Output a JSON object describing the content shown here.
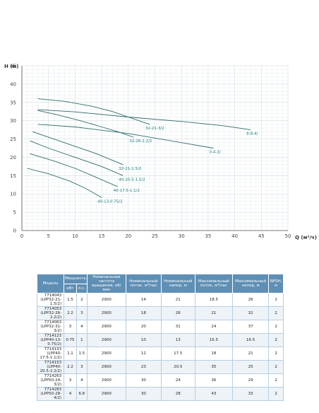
{
  "chart_data": {
    "type": "line",
    "xlabel": "Q (м³/ч)",
    "ylabel": "H (м)",
    "xlim": [
      0,
      50
    ],
    "ylim": [
      0,
      45
    ],
    "xticks": [
      "0",
      "5",
      "10",
      "15",
      "20",
      "25",
      "30",
      "35",
      "40",
      "45",
      "50"
    ],
    "yticks": [
      "0",
      "5",
      "10",
      "15",
      "20",
      "25",
      "30",
      "35",
      "40",
      "45"
    ],
    "grid": true,
    "series": [
      {
        "name": "32-21-3/2",
        "x": [
          3,
          8,
          13,
          17,
          20,
          22,
          24
        ],
        "y": [
          36,
          35.3,
          34,
          32.5,
          31,
          30,
          29
        ]
      },
      {
        "name": "8-8-4/",
        "x": [
          3,
          10,
          20,
          30,
          38,
          43
        ],
        "y": [
          33,
          32.4,
          31,
          29.8,
          28.6,
          27.5
        ]
      },
      {
        "name": "32-26-2.2/2",
        "x": [
          3,
          7,
          11,
          15,
          18,
          21
        ],
        "y": [
          32.8,
          31.5,
          30,
          28.3,
          27,
          25.5
        ]
      },
      {
        "name": "0-4-3/",
        "x": [
          3,
          10,
          20,
          30,
          36
        ],
        "y": [
          29,
          28.3,
          26.5,
          24,
          22.5
        ]
      },
      {
        "name": "32-21-1.5/2",
        "x": [
          2,
          6,
          10,
          14,
          19
        ],
        "y": [
          27,
          25,
          23,
          21,
          18
        ]
      },
      {
        "name": "40-20.5-1.5/2",
        "x": [
          1.5,
          5,
          10,
          15,
          19
        ],
        "y": [
          24.5,
          22.5,
          20,
          17.5,
          15
        ]
      },
      {
        "name": "40-17.5-1.1/2",
        "x": [
          1.5,
          6,
          10,
          14,
          18
        ],
        "y": [
          21,
          19,
          17,
          14.5,
          12
        ]
      },
      {
        "name": "40-13-0.75/2",
        "x": [
          1,
          5,
          9,
          12,
          15
        ],
        "y": [
          17,
          15.5,
          13.5,
          11.5,
          9
        ]
      }
    ]
  },
  "table": {
    "headers": [
      "Модель",
      "Мощность",
      "Номинальная частота вращения, об/мин",
      "Номинальный поток, м³/час",
      "Номинальный напор, м",
      "Максимальный поток, м³/час",
      "Максимальный напор, м",
      "NPSH, м"
    ],
    "power_sub": [
      "кВт",
      "л.с."
    ],
    "rows": [
      [
        "7714043 (LPP32-21-1.5/2)",
        "1.5",
        "2",
        "2900",
        "14",
        "21",
        "18.5",
        "26",
        "2"
      ],
      [
        "7714053 (LPP32-26-2.2/2)",
        "2.2",
        "3",
        "2900",
        "18",
        "26",
        "21",
        "32",
        "2"
      ],
      [
        "7714063 (LPP32-31-3/2)",
        "3",
        "4",
        "2900",
        "20",
        "31",
        "24",
        "37",
        "2"
      ],
      [
        "7714123 (LPP40-13-0.75/2)",
        "0.75",
        "1",
        "2900",
        "10",
        "13",
        "15.5",
        "16.5",
        "2"
      ],
      [
        "7714133 (LPP40-17.5-1.1/2)",
        "1.1",
        "1.5",
        "2900",
        "12",
        "17.5",
        "18",
        "21",
        "2"
      ],
      [
        "7714153 (LPP40-20.5-2.2/2)",
        "2.2",
        "3",
        "2900",
        "23",
        "20.5",
        "35",
        "25",
        "2"
      ],
      [
        "7714263 (LPP50-24-3/2)",
        "3",
        "4",
        "2900",
        "30",
        "24",
        "36",
        "29",
        "2"
      ],
      [
        "7714283 (LPP50-28-4/2)",
        "4",
        "6.8",
        "2900",
        "30",
        "28",
        "43",
        "33",
        "2"
      ]
    ]
  }
}
